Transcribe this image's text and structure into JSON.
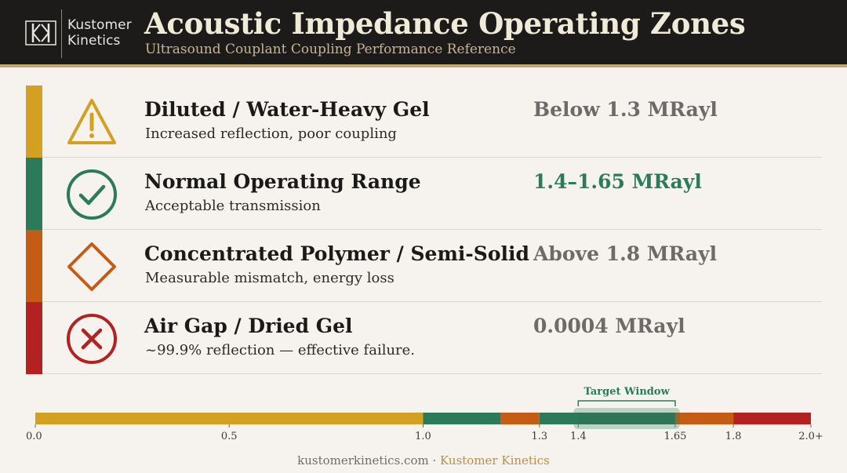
{
  "logo": {
    "line1": "Kustomer",
    "line2": "Kinetics"
  },
  "header": {
    "title": "Acoustic Impedance Operating Zones",
    "subtitle": "Ultrasound Couplant Coupling Performance Reference"
  },
  "colors": {
    "header_bg": "#1d1b19",
    "accent_gold": "#c2a673",
    "yellow": "#d3a021",
    "green": "#2b7a5a",
    "orange": "#c55c15",
    "red": "#b42121",
    "range_gray": "#6c6b69"
  },
  "zones": [
    {
      "title": "Diluted / Water-Heavy Gel",
      "desc": "Increased reflection, poor coupling",
      "range": "Below 1.3 MRayl",
      "icon": "warning-triangle-icon",
      "color": "#d3a021",
      "range_color": "#6c6b69"
    },
    {
      "title": "Normal Operating Range",
      "desc": "Acceptable transmission",
      "range": "1.4–1.65 MRayl",
      "icon": "check-circle-icon",
      "color": "#2b7a5a",
      "range_color": "#2b7a5a"
    },
    {
      "title": "Concentrated Polymer / Semi-Solid",
      "desc": "Measurable mismatch, energy loss",
      "range": "Above 1.8 MRayl",
      "icon": "diamond-icon",
      "color": "#c55c15",
      "range_color": "#6c6b69"
    },
    {
      "title": "Air Gap / Dried Gel",
      "desc": "~99.9% reflection — effective failure.",
      "range": "0.0004 MRayl",
      "icon": "x-circle-icon",
      "color": "#b42121",
      "range_color": "#6c6b69"
    }
  ],
  "scale": {
    "target_label": "Target Window",
    "target_range": [
      1.4,
      1.65
    ],
    "ticks": [
      {
        "label": "0.0",
        "value": 0.0
      },
      {
        "label": "0.5",
        "value": 0.5
      },
      {
        "label": "1.0",
        "value": 1.0
      },
      {
        "label": "1.3",
        "value": 1.3
      },
      {
        "label": "1.4",
        "value": 1.4
      },
      {
        "label": "1.65",
        "value": 1.65
      },
      {
        "label": "1.8",
        "value": 1.8
      },
      {
        "label": "2.0+",
        "value": 2.0
      }
    ],
    "segments": [
      {
        "from": 0.0,
        "to": 1.0,
        "color": "#d3a021"
      },
      {
        "from": 1.0,
        "to": 1.2,
        "color": "#2b7a5a"
      },
      {
        "from": 1.2,
        "to": 1.3,
        "color": "#c55c15"
      },
      {
        "from": 1.3,
        "to": 1.6,
        "color": "#2b7a5a"
      },
      {
        "from": 1.6,
        "to": 1.8,
        "color": "#c55c15"
      },
      {
        "from": 1.8,
        "to": 2.0,
        "color": "#b42121"
      }
    ]
  },
  "footer": {
    "site": "kustomerkinetics.com",
    "sep": " · ",
    "brand": "Kustomer Kinetics"
  }
}
